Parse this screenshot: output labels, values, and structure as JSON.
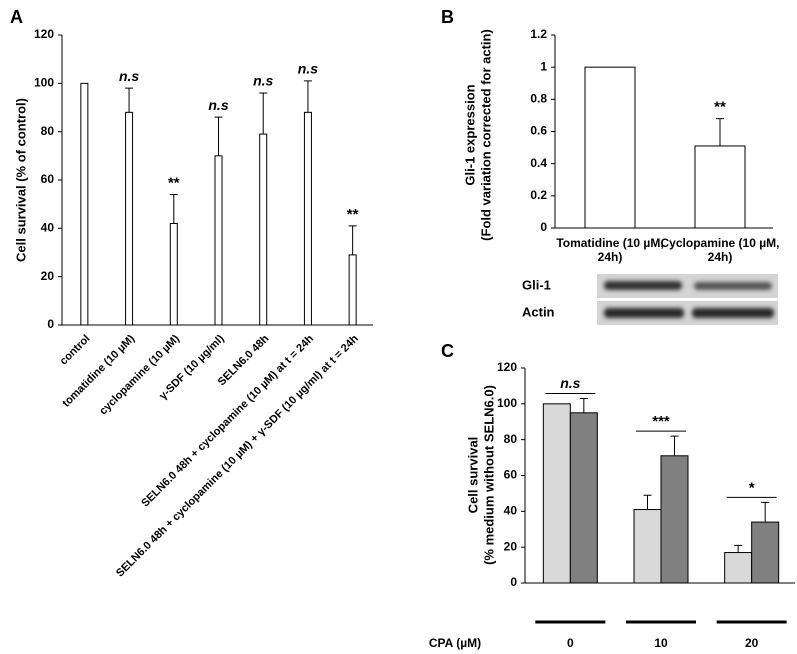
{
  "chart_data": [
    {
      "panel": "A",
      "type": "bar",
      "ylabel": [
        "Cell survival (% of control)"
      ],
      "categories": [
        "control",
        "tomatidine (10 µM)",
        "cyclopamine (10 µM)",
        "γ-SDF (10 µg/ml)",
        "SELN6.0 48h",
        "SELN6.0 48h + cyclopamine (10 µM) at t = 24h",
        "SELN6.0 48h + cyclopamine (10 µM) + γ-SDF (10 µg/ml) at t = 24h"
      ],
      "values": [
        100,
        88,
        42,
        70,
        79,
        88,
        29
      ],
      "errors": [
        null,
        10,
        12,
        16,
        17,
        13,
        12
      ],
      "annotations": [
        null,
        "n.s",
        "**",
        "n.s",
        "n.s",
        "n.s",
        "**"
      ],
      "color": "#ffffff",
      "ylim": [
        0,
        120
      ],
      "yticks": [
        0,
        20,
        40,
        60,
        80,
        100,
        120
      ]
    },
    {
      "panel": "B",
      "type": "bar",
      "ylabel": [
        "Gli-1 expression",
        "(Fold variation corrected for actin)"
      ],
      "categories": [
        "Tomatidine (10 µM, 24h)",
        "Cyclopamine (10 µM, 24h)"
      ],
      "values": [
        1,
        0.51
      ],
      "errors": [
        null,
        0.17
      ],
      "annotations": [
        null,
        "**"
      ],
      "color": "#ffffff",
      "ylim": [
        0,
        1.2
      ],
      "yticks": [
        0,
        0.2,
        0.4,
        0.6,
        0.8,
        1,
        1.2
      ]
    },
    {
      "panel": "C",
      "type": "grouped_bar",
      "ylabel": [
        "Cell survival",
        "(% medium without SELN6.0)"
      ],
      "xlabel": "CPA (µM)",
      "categories": [
        "0",
        "10",
        "20"
      ],
      "series": [
        {
          "color": "#d9d9d9",
          "values": [
            100,
            41,
            17
          ],
          "errors": [
            null,
            8,
            4
          ]
        },
        {
          "color": "#808080",
          "values": [
            95,
            71,
            34
          ],
          "errors": [
            8,
            11,
            11
          ]
        }
      ],
      "annotations": [
        "n.s",
        "***",
        "*"
      ],
      "ylim": [
        0,
        120
      ],
      "yticks": [
        0,
        20,
        40,
        60,
        80,
        100,
        120
      ]
    }
  ],
  "blot": {
    "rows": [
      "Gli-1",
      "Actin"
    ]
  }
}
